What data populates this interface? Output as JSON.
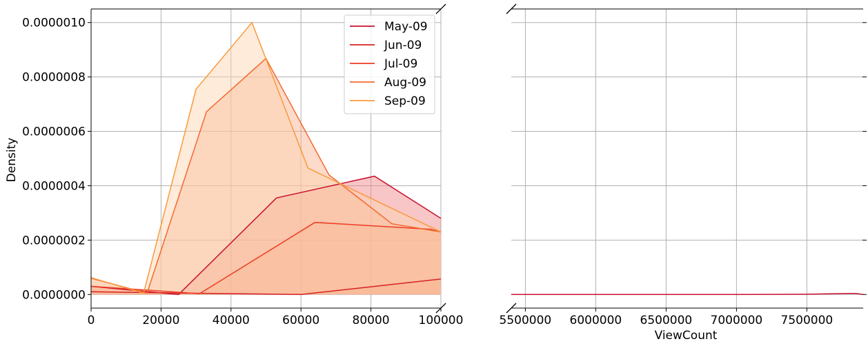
{
  "chart_data": {
    "type": "area",
    "xlabel": "ViewCount",
    "ylabel": "Density",
    "grid": true,
    "legend_position": "top-right",
    "broken_x_axis": true,
    "y_tick_labels": [
      "0.0000000",
      "0.0000002",
      "0.0000004",
      "0.0000006",
      "0.0000008",
      "0.0000010"
    ],
    "y_ticks": [
      0,
      2e-07,
      4e-07,
      6e-07,
      8e-07,
      1e-06
    ],
    "ylim": [
      -5e-08,
      1.05e-06
    ],
    "panels": [
      {
        "xlim": [
          0,
          100000
        ],
        "x_ticks": [
          0,
          20000,
          40000,
          60000,
          80000,
          100000
        ],
        "x_tick_labels": [
          "0",
          "20000",
          "40000",
          "60000",
          "80000",
          "100000"
        ]
      },
      {
        "xlim": [
          5400000,
          7900000
        ],
        "x_ticks": [
          5500000,
          6000000,
          6500000,
          7000000,
          7500000
        ],
        "x_tick_labels": [
          "5500000",
          "6000000",
          "6500000",
          "7000000",
          "7500000"
        ]
      }
    ],
    "series": [
      {
        "name": "May-09",
        "color": "#c8102e",
        "fill": "#f08080",
        "x": [
          0,
          25000,
          53000,
          81000,
          100000
        ],
        "y": [
          3e-08,
          0.0,
          3.55e-07,
          4.35e-07,
          2.8e-07
        ]
      },
      {
        "name": "Jun-09",
        "color": "#d62020",
        "fill": "#f08060",
        "x": [
          0,
          26000,
          60000,
          100000
        ],
        "y": [
          1e-08,
          5e-09,
          0.0,
          5.7e-08
        ]
      },
      {
        "name": "Jul-09",
        "color": "#ee3b22",
        "fill": "#f4a07a",
        "x": [
          0,
          31000,
          64000,
          97000,
          100000
        ],
        "y": [
          3e-08,
          3e-09,
          2.65e-07,
          2.4e-07,
          2.3e-07
        ]
      },
      {
        "name": "Aug-09",
        "color": "#f4692e",
        "fill": "#f9b08c",
        "x": [
          0,
          16000,
          33000,
          50000,
          68000,
          86000,
          100000
        ],
        "y": [
          6e-08,
          5e-09,
          6.72e-07,
          8.68e-07,
          4.4e-07,
          2.6e-07,
          2.3e-07
        ]
      },
      {
        "name": "Sep-09",
        "color": "#f89a3c",
        "fill": "#fcd2ac",
        "x": [
          0,
          15000,
          30000,
          46000,
          62000,
          100000
        ],
        "y": [
          6.2e-08,
          5e-09,
          7.55e-07,
          1e-06,
          4.65e-07,
          2.3e-07
        ]
      }
    ],
    "right_panel_line": {
      "color": "#c8102e",
      "x": [
        5400000,
        6000000,
        6500000,
        7000000,
        7500000,
        7700000,
        7800000,
        7850000,
        7900000
      ],
      "y": [
        0.0,
        0.0,
        0.0,
        0.0,
        1e-09,
        3e-09,
        4e-09,
        4e-09,
        0.0
      ]
    }
  }
}
